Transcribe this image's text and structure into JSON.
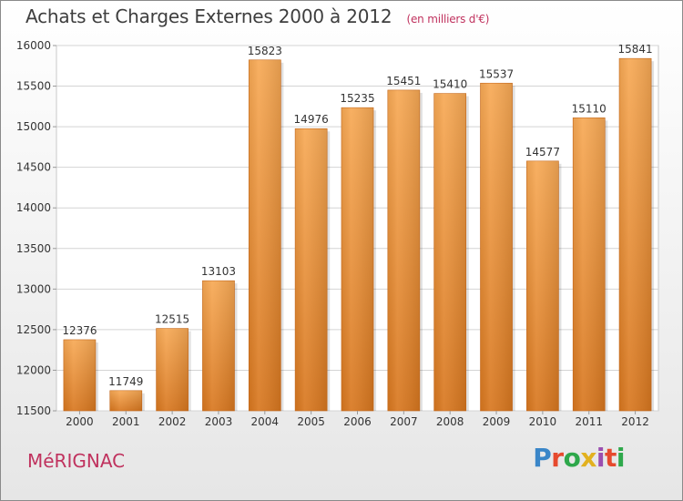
{
  "header": {
    "title": "Achats et Charges Externes 2000 à 2012",
    "unit": "(en milliers d'€)"
  },
  "footer": {
    "town": "MéRIGNAC",
    "brand": "Proxiti",
    "brand_colors": [
      "#3a86c8",
      "#e64a2e",
      "#2ea84b",
      "#e2b11f",
      "#9b4fb0",
      "#e64a2e",
      "#2ea84b"
    ]
  },
  "chart_data": {
    "type": "bar",
    "title": "Achats et Charges Externes 2000 à 2012",
    "xlabel": "",
    "ylabel": "",
    "categories": [
      "2000",
      "2001",
      "2002",
      "2003",
      "2004",
      "2005",
      "2006",
      "2007",
      "2008",
      "2009",
      "2010",
      "2011",
      "2012"
    ],
    "values": [
      12376,
      11749,
      12515,
      13103,
      15823,
      14976,
      15235,
      15451,
      15410,
      15537,
      14577,
      15110,
      15841
    ],
    "ylim": [
      11500,
      16000
    ],
    "yticks": [
      11500,
      12000,
      12500,
      13000,
      13500,
      14000,
      14500,
      15000,
      15500,
      16000
    ],
    "grid": true,
    "bar_color_top": "#f7a955",
    "bar_color_bottom": "#d8771f"
  }
}
